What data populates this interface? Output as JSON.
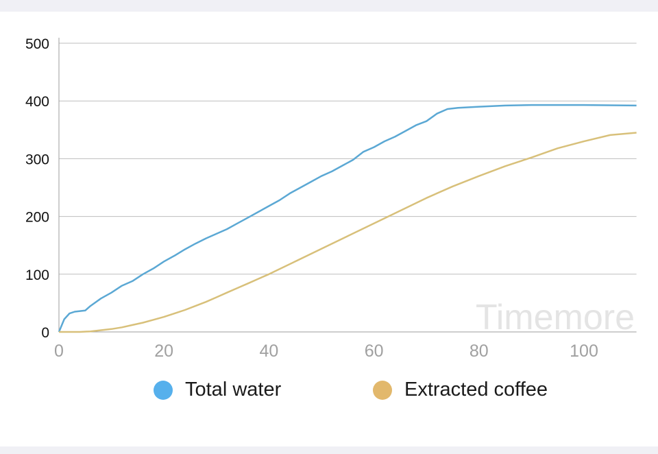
{
  "chart_data": {
    "type": "line",
    "title": "",
    "xlabel": "",
    "ylabel": "",
    "xlim": [
      0,
      110
    ],
    "ylim": [
      0,
      500
    ],
    "x_ticks": [
      "0",
      "20",
      "40",
      "60",
      "80",
      "100"
    ],
    "y_ticks": [
      "0",
      "100",
      "200",
      "300",
      "400",
      "500"
    ],
    "grid": "horizontal",
    "legend_placement": "bottom",
    "watermark": "Timemore",
    "series": [
      {
        "name": "Total water",
        "color": "#5ba8d4",
        "legend_color": "#56b0ec",
        "points": [
          [
            0,
            0
          ],
          [
            1,
            22
          ],
          [
            2,
            32
          ],
          [
            3,
            35
          ],
          [
            5,
            37
          ],
          [
            6,
            45
          ],
          [
            8,
            58
          ],
          [
            10,
            68
          ],
          [
            12,
            80
          ],
          [
            14,
            88
          ],
          [
            16,
            100
          ],
          [
            18,
            110
          ],
          [
            20,
            122
          ],
          [
            22,
            132
          ],
          [
            24,
            143
          ],
          [
            26,
            153
          ],
          [
            28,
            162
          ],
          [
            30,
            170
          ],
          [
            32,
            178
          ],
          [
            34,
            188
          ],
          [
            36,
            198
          ],
          [
            38,
            208
          ],
          [
            40,
            218
          ],
          [
            42,
            228
          ],
          [
            44,
            240
          ],
          [
            46,
            250
          ],
          [
            48,
            260
          ],
          [
            50,
            270
          ],
          [
            52,
            278
          ],
          [
            54,
            288
          ],
          [
            56,
            298
          ],
          [
            58,
            312
          ],
          [
            60,
            320
          ],
          [
            62,
            330
          ],
          [
            64,
            338
          ],
          [
            66,
            348
          ],
          [
            68,
            358
          ],
          [
            70,
            365
          ],
          [
            72,
            378
          ],
          [
            74,
            386
          ],
          [
            76,
            388
          ],
          [
            80,
            390
          ],
          [
            85,
            392
          ],
          [
            90,
            393
          ],
          [
            100,
            393
          ],
          [
            110,
            392
          ]
        ]
      },
      {
        "name": "Extracted coffee",
        "color": "#d8c07a",
        "legend_color": "#e2b86c",
        "points": [
          [
            0,
            0
          ],
          [
            4,
            0
          ],
          [
            6,
            1
          ],
          [
            8,
            3
          ],
          [
            10,
            5
          ],
          [
            12,
            8
          ],
          [
            14,
            12
          ],
          [
            16,
            16
          ],
          [
            18,
            21
          ],
          [
            20,
            26
          ],
          [
            22,
            32
          ],
          [
            24,
            38
          ],
          [
            26,
            45
          ],
          [
            28,
            52
          ],
          [
            30,
            60
          ],
          [
            32,
            68
          ],
          [
            34,
            76
          ],
          [
            36,
            84
          ],
          [
            38,
            92
          ],
          [
            40,
            100
          ],
          [
            45,
            122
          ],
          [
            50,
            144
          ],
          [
            55,
            166
          ],
          [
            60,
            188
          ],
          [
            65,
            210
          ],
          [
            70,
            232
          ],
          [
            75,
            252
          ],
          [
            80,
            270
          ],
          [
            85,
            287
          ],
          [
            90,
            302
          ],
          [
            95,
            318
          ],
          [
            100,
            330
          ],
          [
            105,
            341
          ],
          [
            110,
            345
          ]
        ]
      }
    ]
  }
}
